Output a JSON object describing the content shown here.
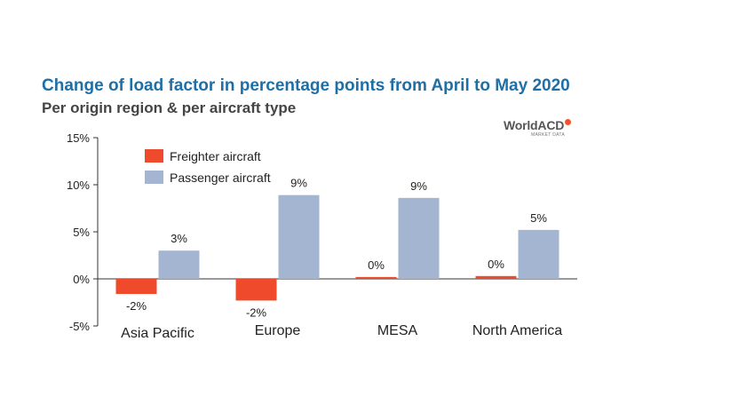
{
  "header": {
    "title": "Change of load factor in percentage points from April to May 2020",
    "subtitle": "Per origin region & per aircraft type"
  },
  "logo": {
    "name": "WorldACD",
    "tagline": "MARKET DATA"
  },
  "colors": {
    "freighter": "#f04a2d",
    "passenger": "#a4b5d2",
    "title": "#1f6fa6"
  },
  "chart_data": {
    "type": "bar",
    "title": "Change of load factor in percentage points from April to May 2020",
    "subtitle": "Per origin region & per aircraft type",
    "categories": [
      "Asia Pacific",
      "Europe",
      "MESA",
      "North America"
    ],
    "series": [
      {
        "name": "Freighter aircraft",
        "values": [
          -1.6,
          -2.3,
          0.2,
          0.3
        ],
        "labels": [
          "-2%",
          "-2%",
          "0%",
          "0%"
        ]
      },
      {
        "name": "Passenger aircraft",
        "values": [
          3.0,
          8.9,
          8.6,
          5.2
        ],
        "labels": [
          "3%",
          "9%",
          "9%",
          "5%"
        ]
      }
    ],
    "ylim": [
      -5,
      15
    ],
    "yticks": [
      -5,
      0,
      5,
      10,
      15
    ],
    "ytick_labels": [
      "-5%",
      "0%",
      "5%",
      "10%",
      "15%"
    ],
    "xlabel": "",
    "ylabel": "",
    "grid": false,
    "legend_position": "top-left"
  }
}
